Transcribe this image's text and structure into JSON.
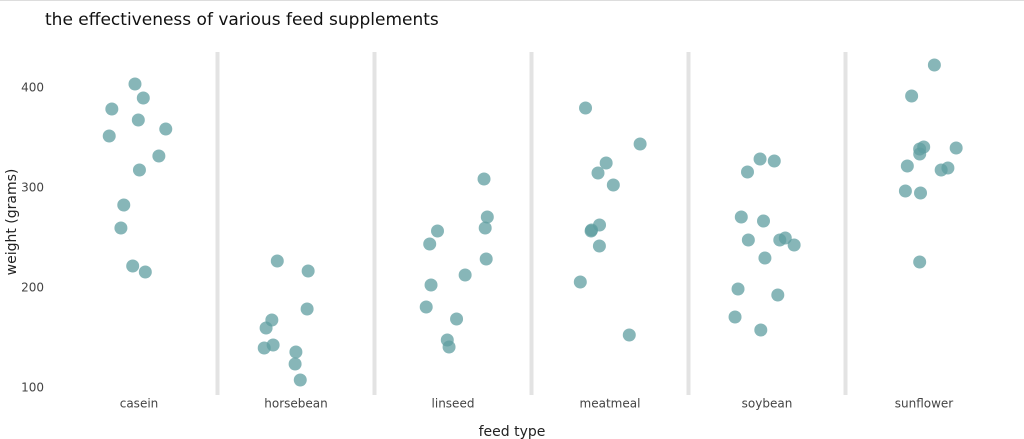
{
  "chart_data": {
    "type": "strip",
    "title": "the effectiveness of various feed supplements",
    "x_label": "feed type",
    "y_label": "weight (grams)",
    "categories": [
      "casein",
      "horsebean",
      "linseed",
      "meatmeal",
      "soybean",
      "sunflower"
    ],
    "values": [
      [
        368,
        390,
        379,
        260,
        404,
        318,
        352,
        359,
        216,
        222,
        283,
        332
      ],
      [
        179,
        160,
        136,
        227,
        217,
        168,
        108,
        124,
        143,
        140
      ],
      [
        309,
        229,
        181,
        141,
        260,
        203,
        148,
        169,
        213,
        257,
        244,
        271
      ],
      [
        325,
        257,
        303,
        315,
        380,
        153,
        263,
        242,
        206,
        344,
        258
      ],
      [
        243,
        230,
        248,
        327,
        329,
        250,
        193,
        271,
        316,
        267,
        199,
        171,
        158,
        248
      ],
      [
        423,
        340,
        392,
        339,
        341,
        226,
        320,
        295,
        334,
        322,
        297,
        318
      ]
    ],
    "color": "#5f9ea0",
    "ylim": [
      93,
      436
    ],
    "yticks": [
      100,
      200,
      300,
      400
    ]
  }
}
